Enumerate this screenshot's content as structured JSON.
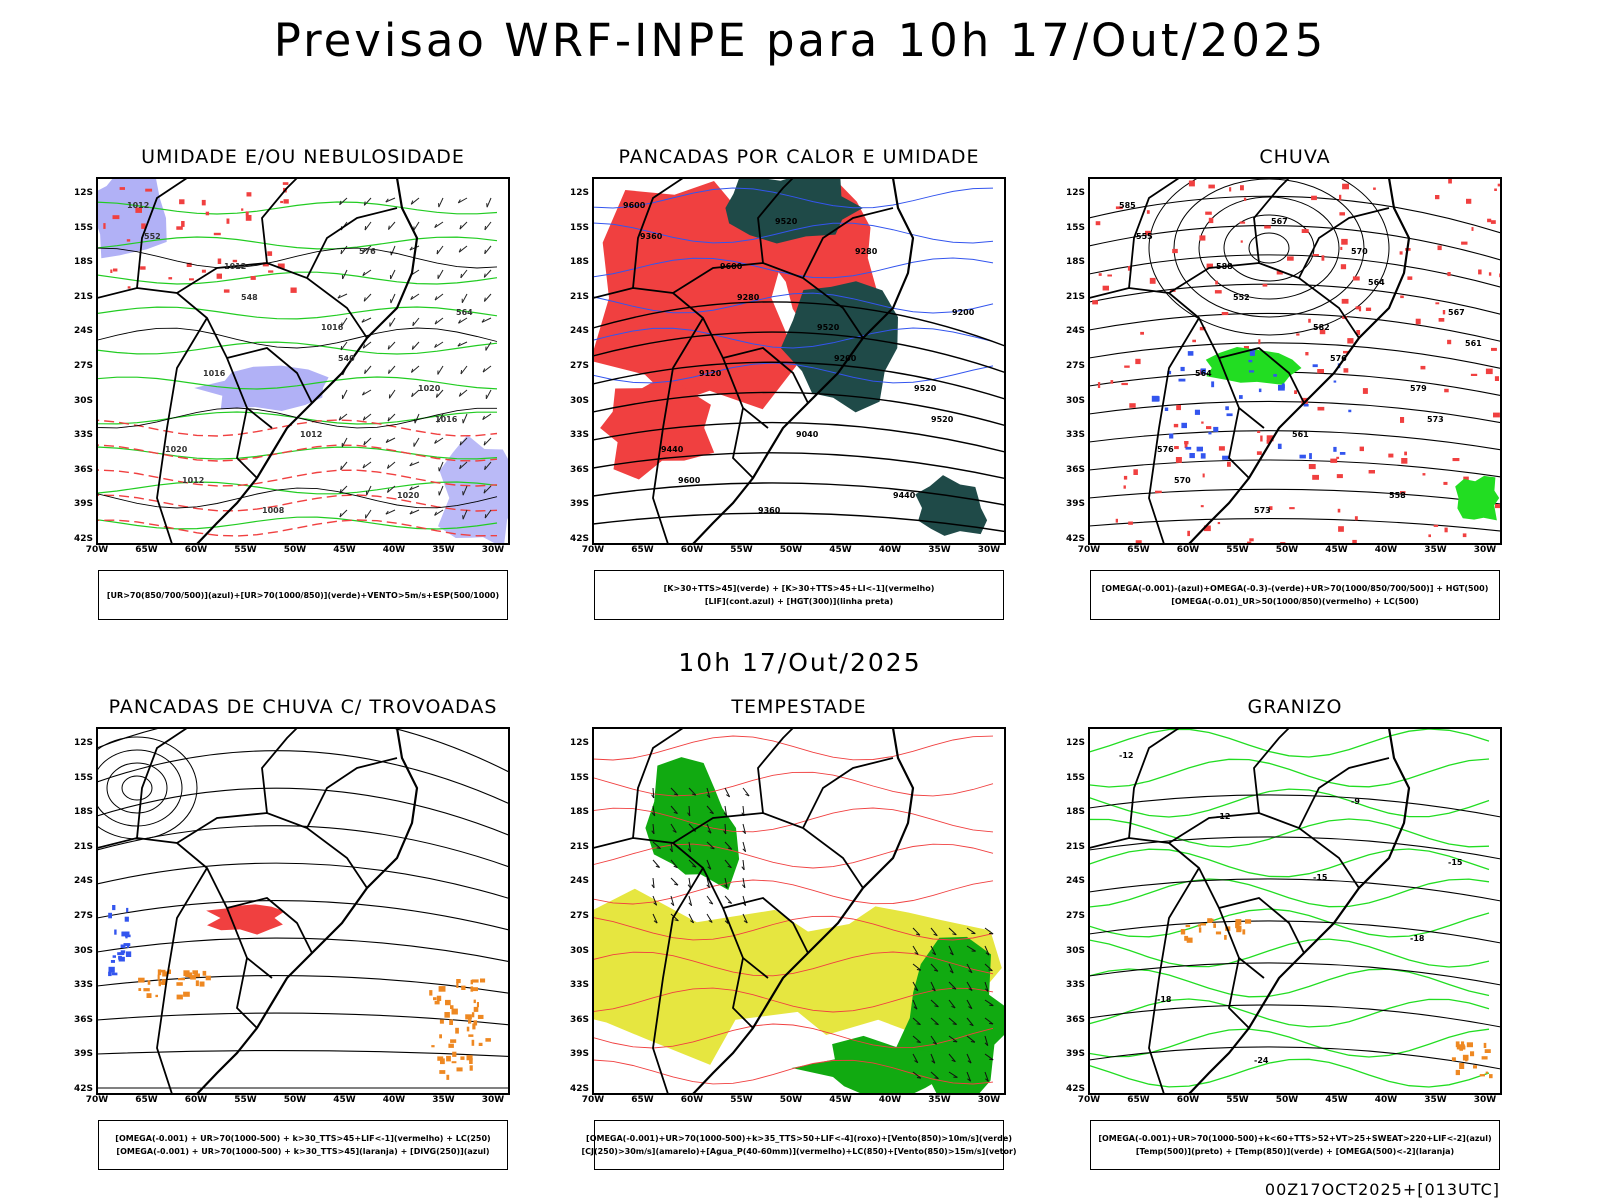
{
  "title": "Previsao WRF-INPE  para 10h 17/Out/2025",
  "mid_title": "10h 17/Out/2025",
  "footer": "00Z17OCT2025+[013UTC]",
  "lat_ticks": [
    "12S",
    "15S",
    "18S",
    "21S",
    "24S",
    "27S",
    "30S",
    "33S",
    "36S",
    "39S",
    "42S"
  ],
  "lon_ticks": [
    "70W",
    "65W",
    "60W",
    "55W",
    "50W",
    "45W",
    "40W",
    "35W",
    "30W"
  ],
  "panels": [
    {
      "title": "UMIDADE E/OU NEBULOSIDADE",
      "legend": [
        "[UR>70(850/700/500)](azul)+[UR>70(1000/850)](verde)+VENTO>5m/s+ESP(500/1000)"
      ],
      "contour_labels": [
        "1012",
        "1012",
        "1016",
        "1020",
        "1020",
        "1008",
        "576",
        "564",
        "1016",
        "1012",
        "1020",
        "552",
        "548",
        "540",
        "1016",
        "1012"
      ]
    },
    {
      "title": "PANCADAS POR CALOR E UMIDADE",
      "legend": [
        "[K>30+TTS>45](verde) + [K>30+TTS>45+LI<-1](vermelho)",
        "[LIF](cont.azul) + [HGT(300)](linha preta)"
      ],
      "contour_labels": [
        "9600",
        "9600",
        "9520",
        "9520",
        "9440",
        "9360",
        "9280",
        "9200",
        "9120",
        "9040",
        "9440",
        "9360",
        "9280",
        "9200",
        "9520",
        "9600",
        "9520"
      ]
    },
    {
      "title": "CHUVA",
      "legend": [
        "[OMEGA(-0.001)-(azul)+OMEGA(-0.3)-(verde)+UR>70(1000/850/700/500)] + HGT(500)",
        "[OMEGA(-0.01)_UR>50(1000/850)(vermelho) + LC(500)"
      ],
      "contour_labels": [
        "585",
        "588",
        "582",
        "579",
        "576",
        "573",
        "570",
        "567",
        "564",
        "561",
        "558",
        "555",
        "552",
        "576",
        "573",
        "570",
        "567",
        "564",
        "561"
      ]
    },
    {
      "title": "PANCADAS DE CHUVA C/ TROVOADAS",
      "legend": [
        "[OMEGA(-0.001) + UR>70(1000-500) + k>30_TTS>45+LIF<-1](vermelho) + LC(250)",
        "[OMEGA(-0.001) + UR>70(1000-500) + k>30_TTS>45](laranja) + [DIVG(250)](azul)"
      ],
      "contour_labels": []
    },
    {
      "title": "TEMPESTADE",
      "legend": [
        "[OMEGA(-0.001)+UR>70(1000-500)+k>35_TTS>50+LIF<-4](roxo)+[Vento(850)>10m/s](verde)",
        "[CJ(250)>30m/s](amarelo)+[Agua_P(40-60mm)](vermelho)+LC(850)+[Vento(850)>15m/s](vetor)"
      ],
      "contour_labels": []
    },
    {
      "title": "GRANIZO",
      "legend": [
        "[OMEGA(-0.001)+UR>70(1000-500)+k<60+TTS>52+VT>25+SWEAT>220+LIF<-2](azul)",
        "[Temp(500)](preto) + [Temp(850)](verde) + [OMEGA(500)<-2](laranja)"
      ],
      "contour_labels": [
        "-12",
        "-12",
        "-15",
        "-18",
        "-18",
        "-24",
        "-9",
        "-15"
      ]
    }
  ],
  "colors": {
    "humidity_blue": "#a9a9f5",
    "humidity_green": "#22cc22",
    "red": "#f04040",
    "dark_teal": "#1f4a48",
    "blue": "#3355ee",
    "green": "#22dd22",
    "yellow": "#e6e640",
    "orange": "#ee8822",
    "dark_green": "#11aa11"
  }
}
